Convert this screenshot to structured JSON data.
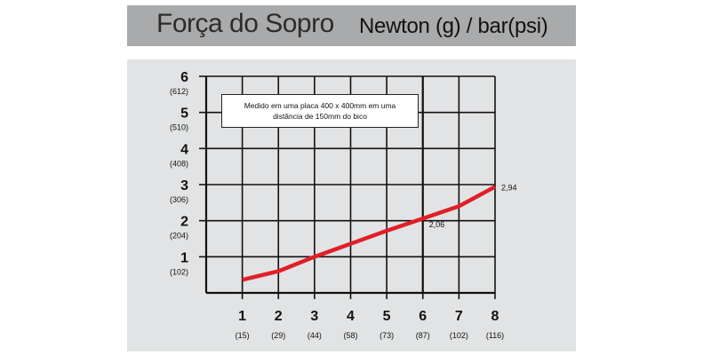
{
  "title": "Força do Sopro",
  "unit_title": "Newton (g) / bar(psi)",
  "note": {
    "line1": "Medido em uma placa 400 x 400mm em uma",
    "line2": "distância de 150mm do bico"
  },
  "colors": {
    "title_bar": "#a9aaab",
    "panel": "#e2e3e4",
    "line": "#e01f26",
    "grid": "#111111"
  },
  "chart_data": {
    "type": "line",
    "grid": true,
    "xlim": [
      0,
      8
    ],
    "ylim": [
      0,
      6
    ],
    "x_ticks": [
      {
        "value": 1,
        "label": "1",
        "sub": "(15)"
      },
      {
        "value": 2,
        "label": "2",
        "sub": "(29)"
      },
      {
        "value": 3,
        "label": "3",
        "sub": "(44)"
      },
      {
        "value": 4,
        "label": "4",
        "sub": "(58)"
      },
      {
        "value": 5,
        "label": "5",
        "sub": "(73)"
      },
      {
        "value": 6,
        "label": "6",
        "sub": "(87)"
      },
      {
        "value": 7,
        "label": "7",
        "sub": "(102)"
      },
      {
        "value": 8,
        "label": "8",
        "sub": "(116)"
      }
    ],
    "y_ticks": [
      {
        "value": 1,
        "label": "1",
        "sub": "(102)"
      },
      {
        "value": 2,
        "label": "2",
        "sub": "(204)"
      },
      {
        "value": 3,
        "label": "3",
        "sub": "(306)"
      },
      {
        "value": 4,
        "label": "4",
        "sub": "(408)"
      },
      {
        "value": 5,
        "label": "5",
        "sub": "(510)"
      },
      {
        "value": 6,
        "label": "6",
        "sub": "(612)"
      }
    ],
    "series": [
      {
        "x": [
          1,
          2,
          3,
          4,
          5,
          6,
          7,
          8
        ],
        "y": [
          0.36,
          0.6,
          1.0,
          1.36,
          1.72,
          2.06,
          2.4,
          2.94
        ]
      }
    ],
    "data_labels": [
      {
        "x": 6,
        "y": 2.06,
        "text": "2,06"
      },
      {
        "x": 8,
        "y": 2.94,
        "text": "2,94"
      }
    ]
  }
}
